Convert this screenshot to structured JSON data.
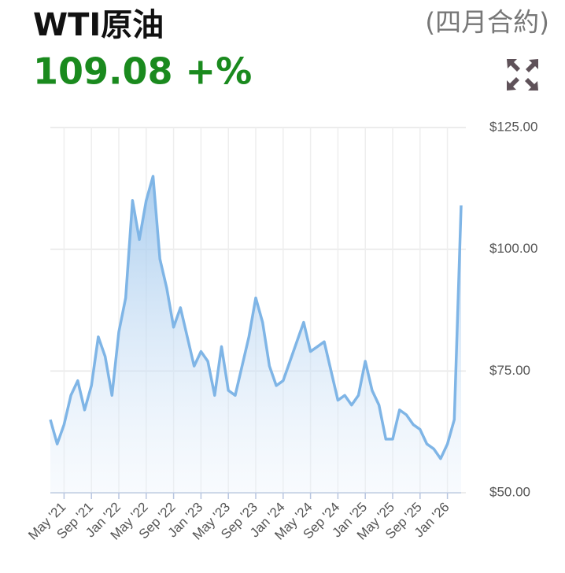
{
  "chart_data": {
    "type": "area-line",
    "title": "WTI原油",
    "subtitle": "(四月合約)",
    "price": "109.08 +%",
    "color": "#7fb5e6",
    "grid": true,
    "x": [
      "2021-03",
      "2021-04",
      "2021-05",
      "2021-06",
      "2021-07",
      "2021-08",
      "2021-09",
      "2021-10",
      "2021-11",
      "2021-12",
      "2022-01",
      "2022-02",
      "2022-03",
      "2022-04",
      "2022-05",
      "2022-06",
      "2022-07",
      "2022-08",
      "2022-09",
      "2022-10",
      "2022-11",
      "2022-12",
      "2023-01",
      "2023-02",
      "2023-03",
      "2023-04",
      "2023-05",
      "2023-06",
      "2023-07",
      "2023-08",
      "2023-09",
      "2023-10",
      "2023-11",
      "2023-12",
      "2024-01",
      "2024-02",
      "2024-03",
      "2024-04",
      "2024-05",
      "2024-06",
      "2024-07",
      "2024-08",
      "2024-09",
      "2024-10",
      "2024-11",
      "2024-12",
      "2025-01",
      "2025-02",
      "2025-03",
      "2025-04",
      "2025-05",
      "2025-06",
      "2025-07",
      "2025-08",
      "2025-09",
      "2025-10",
      "2025-11",
      "2025-12",
      "2026-01",
      "2026-02",
      "2026-03"
    ],
    "values": [
      65,
      60,
      64,
      70,
      73,
      67,
      72,
      82,
      78,
      70,
      83,
      90,
      110,
      102,
      110,
      115,
      98,
      92,
      84,
      88,
      82,
      76,
      79,
      77,
      70,
      80,
      71,
      70,
      76,
      82,
      90,
      85,
      76,
      72,
      73,
      77,
      81,
      85,
      79,
      80,
      81,
      75,
      69,
      70,
      68,
      70,
      77,
      71,
      68,
      61,
      61,
      67,
      66,
      64,
      63,
      60,
      59,
      57,
      60,
      65,
      109
    ],
    "xlim": [
      "2021-03",
      "2026-03"
    ],
    "xticks": [
      {
        "value": "2021-05",
        "label": "May '21"
      },
      {
        "value": "2021-09",
        "label": "Sep '21"
      },
      {
        "value": "2022-01",
        "label": "Jan '22"
      },
      {
        "value": "2022-05",
        "label": "May '22"
      },
      {
        "value": "2022-09",
        "label": "Sep '22"
      },
      {
        "value": "2023-01",
        "label": "Jan '23"
      },
      {
        "value": "2023-05",
        "label": "May '23"
      },
      {
        "value": "2023-09",
        "label": "Sep '23"
      },
      {
        "value": "2024-01",
        "label": "Jan '24"
      },
      {
        "value": "2024-05",
        "label": "May '24"
      },
      {
        "value": "2024-09",
        "label": "Sep '24"
      },
      {
        "value": "2025-01",
        "label": "Jan '25"
      },
      {
        "value": "2025-05",
        "label": "May '25"
      },
      {
        "value": "2025-09",
        "label": "Sep '25"
      },
      {
        "value": "2026-01",
        "label": "Jan '26"
      }
    ],
    "ylim": [
      50,
      125
    ],
    "yticks": [
      {
        "value": 50,
        "label": "$50.00"
      },
      {
        "value": 75,
        "label": "$75.00"
      },
      {
        "value": 100,
        "label": "$100.00"
      },
      {
        "value": 125,
        "label": "$125.00"
      }
    ]
  }
}
